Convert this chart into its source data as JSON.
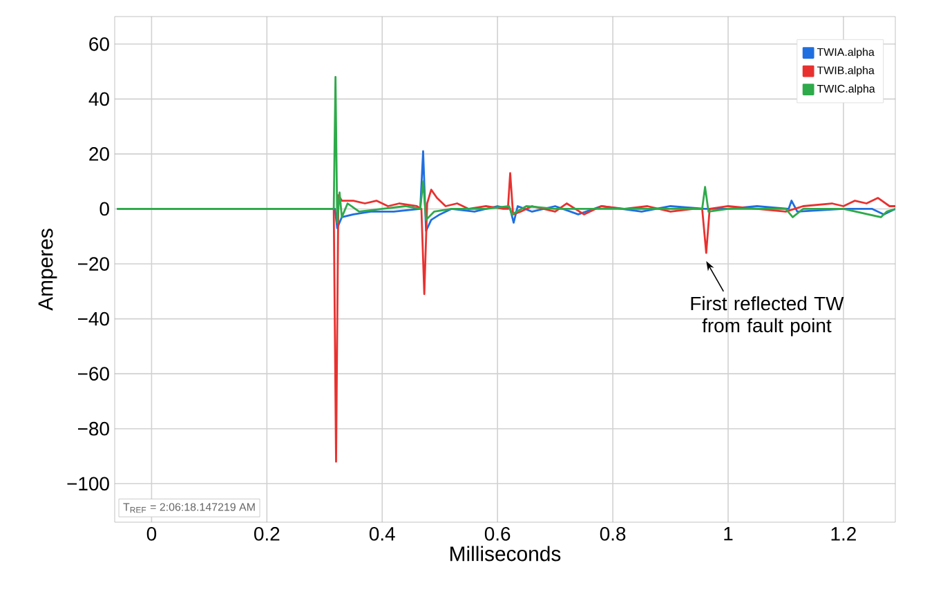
{
  "chart_data": {
    "type": "line",
    "xlabel": "Milliseconds",
    "ylabel": "Amperes",
    "xlim": [
      -0.064,
      1.29
    ],
    "ylim": [
      -114,
      70
    ],
    "xticks": [
      0,
      0.2,
      0.4,
      0.6,
      0.8,
      1,
      1.2
    ],
    "yticks": [
      60,
      40,
      20,
      0,
      {
        "value": -20,
        "label": "−20"
      },
      {
        "value": -40,
        "label": "−40"
      },
      {
        "value": -60,
        "label": "−60"
      },
      {
        "value": -80,
        "label": "−80"
      },
      {
        "value": -100,
        "label": "−100"
      }
    ],
    "grid": true,
    "legend": "top right",
    "marker": "none",
    "line_style": "solid",
    "series": [
      {
        "name": "TWIA.alpha",
        "color": "#1f6fe0",
        "x": [
          -0.06,
          0.1,
          0.31,
          0.318,
          0.322,
          0.33,
          0.35,
          0.38,
          0.42,
          0.466,
          0.471,
          0.476,
          0.485,
          0.5,
          0.52,
          0.56,
          0.6,
          0.622,
          0.628,
          0.635,
          0.66,
          0.7,
          0.74,
          0.78,
          0.85,
          0.9,
          0.96,
          1.0,
          1.05,
          1.105,
          1.11,
          1.12,
          1.2,
          1.25,
          1.27,
          1.29
        ],
        "values": [
          0,
          0,
          0,
          0,
          -7,
          -3,
          -2,
          -1,
          -1,
          0,
          21,
          -8,
          -4,
          -2,
          0,
          -1,
          1,
          0,
          -5,
          1,
          -1,
          1,
          -2,
          1,
          -1,
          1,
          0,
          0,
          1,
          0,
          3,
          -1,
          0,
          0,
          -2,
          0
        ]
      },
      {
        "name": "TWIB.alpha",
        "color": "#e8312f",
        "x": [
          0.316,
          0.32,
          0.324,
          0.33,
          0.35,
          0.37,
          0.39,
          0.41,
          0.43,
          0.46,
          0.468,
          0.473,
          0.478,
          0.485,
          0.495,
          0.51,
          0.53,
          0.55,
          0.58,
          0.61,
          0.618,
          0.622,
          0.627,
          0.64,
          0.66,
          0.7,
          0.72,
          0.75,
          0.78,
          0.82,
          0.86,
          0.9,
          0.94,
          0.955,
          0.962,
          0.968,
          1.0,
          1.05,
          1.1,
          1.13,
          1.18,
          1.2,
          1.22,
          1.24,
          1.26,
          1.28,
          1.29
        ],
        "values": [
          0,
          -92,
          5,
          3,
          3,
          2,
          3,
          1,
          2,
          1,
          0,
          -31,
          2,
          7,
          4,
          1,
          2,
          0,
          1,
          0,
          0,
          13,
          -2,
          -1,
          1,
          -1,
          2,
          -2,
          1,
          0,
          1,
          -1,
          0,
          0,
          -16,
          0,
          1,
          0,
          -1,
          1,
          2,
          1,
          3,
          2,
          4,
          1,
          1
        ]
      },
      {
        "name": "TWIC.alpha",
        "color": "#2eaa4a",
        "x": [
          -0.06,
          0.1,
          0.31,
          0.316,
          0.319,
          0.322,
          0.326,
          0.33,
          0.34,
          0.36,
          0.4,
          0.44,
          0.466,
          0.471,
          0.476,
          0.49,
          0.52,
          0.58,
          0.62,
          0.625,
          0.65,
          0.7,
          0.8,
          0.9,
          0.955,
          0.96,
          0.966,
          1.0,
          1.1,
          1.112,
          1.13,
          1.2,
          1.265,
          1.275,
          1.29
        ],
        "values": [
          0,
          0,
          0,
          0,
          48,
          -5,
          6,
          -3,
          2,
          -1,
          0,
          1,
          0,
          10,
          -4,
          -1,
          0,
          0,
          1,
          -2,
          1,
          0,
          0,
          0,
          0,
          8,
          -1,
          0,
          0,
          -3,
          0,
          0,
          -3,
          -1,
          0
        ]
      }
    ],
    "annotations": [
      {
        "text": "First reflected TW from fault point",
        "x": 0.962,
        "y": -16
      },
      "T$_{REF}$ = 2:06:18.147219 AM"
    ]
  }
}
